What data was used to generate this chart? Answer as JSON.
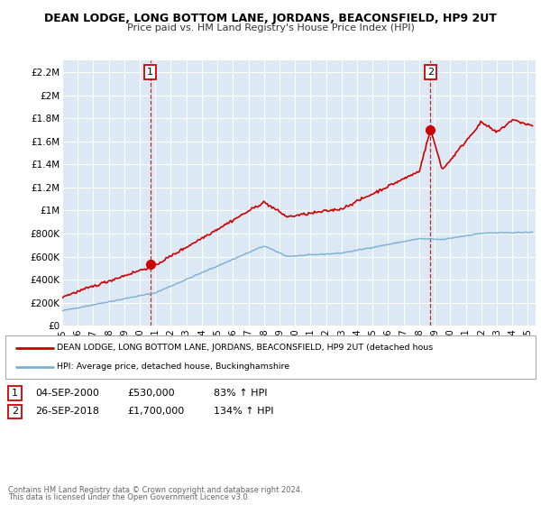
{
  "title": "DEAN LODGE, LONG BOTTOM LANE, JORDANS, BEACONSFIELD, HP9 2UT",
  "subtitle": "Price paid vs. HM Land Registry's House Price Index (HPI)",
  "plot_bg_color": "#dce9f5",
  "red_color": "#cc0000",
  "blue_color": "#7bafd4",
  "ylim": [
    0,
    2300000
  ],
  "yticks": [
    0,
    200000,
    400000,
    600000,
    800000,
    1000000,
    1200000,
    1400000,
    1600000,
    1800000,
    2000000,
    2200000
  ],
  "ytick_labels": [
    "£0",
    "£200K",
    "£400K",
    "£600K",
    "£800K",
    "£1M",
    "£1.2M",
    "£1.4M",
    "£1.6M",
    "£1.8M",
    "£2M",
    "£2.2M"
  ],
  "xlim_min": 1995,
  "xlim_max": 2025.5,
  "sale1_x": 2000.67,
  "sale1_y": 530000,
  "sale1_label": "1",
  "sale1_date": "04-SEP-2000",
  "sale1_price": "£530,000",
  "sale1_hpi": "83% ↑ HPI",
  "sale2_x": 2018.73,
  "sale2_y": 1700000,
  "sale2_label": "2",
  "sale2_date": "26-SEP-2018",
  "sale2_price": "£1,700,000",
  "sale2_hpi": "134% ↑ HPI",
  "legend_red_label": "DEAN LODGE, LONG BOTTOM LANE, JORDANS, BEACONSFIELD, HP9 2UT (detached hous",
  "legend_blue_label": "HPI: Average price, detached house, Buckinghamshire",
  "footer1": "Contains HM Land Registry data © Crown copyright and database right 2024.",
  "footer2": "This data is licensed under the Open Government Licence v3.0."
}
